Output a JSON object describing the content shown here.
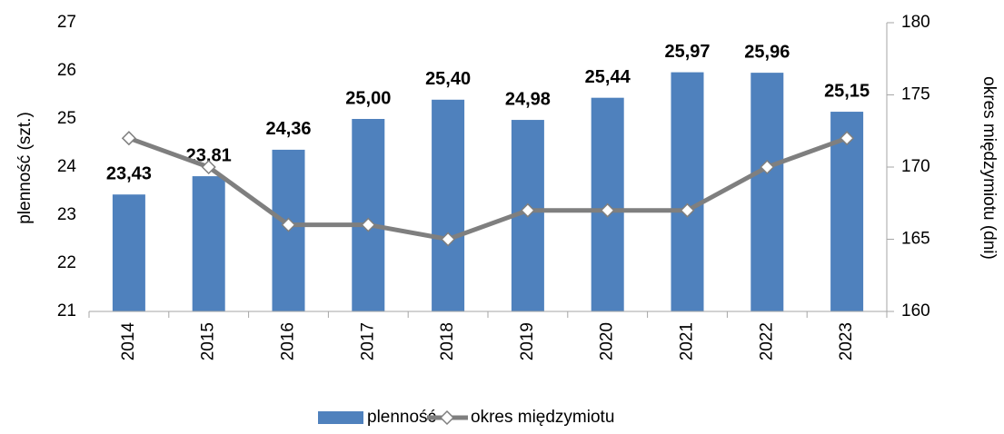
{
  "chart_data": {
    "type": "bar",
    "categories": [
      "2014",
      "2015",
      "2016",
      "2017",
      "2018",
      "2019",
      "2020",
      "2021",
      "2022",
      "2023"
    ],
    "series": [
      {
        "name": "plenność",
        "type": "bar",
        "color": "#4f81bd",
        "values": [
          23.43,
          23.81,
          24.36,
          25.0,
          25.4,
          24.98,
          25.44,
          25.97,
          25.96,
          25.15
        ],
        "value_labels": [
          "23,43",
          "23,81",
          "24,36",
          "25,00",
          "25,40",
          "24,98",
          "25,44",
          "25,97",
          "25,96",
          "25,15"
        ]
      },
      {
        "name": "okres międzymiotu",
        "type": "line",
        "axis": "y2",
        "color": "#7f7f7f",
        "values": [
          172,
          170,
          166,
          166,
          165,
          167,
          167,
          167,
          170,
          172
        ]
      }
    ],
    "ylabel": "plenność (szt.)",
    "y2label": "okres międzymiotu (dni)",
    "ylim": [
      21,
      27
    ],
    "yticks": [
      21,
      22,
      23,
      24,
      25,
      26,
      27
    ],
    "y2lim": [
      160,
      180
    ],
    "y2ticks": [
      160,
      165,
      170,
      175,
      180
    ],
    "grid": false,
    "legend": "bottom"
  }
}
